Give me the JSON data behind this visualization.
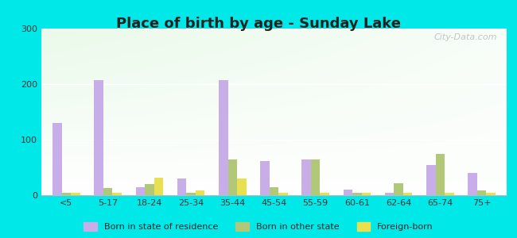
{
  "title": "Place of birth by age - Sunday Lake",
  "categories": [
    "<5",
    "5-17",
    "18-24",
    "25-34",
    "35-44",
    "45-54",
    "55-59",
    "60-61",
    "62-64",
    "65-74",
    "75+"
  ],
  "born_in_state": [
    130,
    207,
    15,
    30,
    207,
    62,
    65,
    10,
    5,
    55,
    40
  ],
  "born_other_state": [
    5,
    13,
    20,
    5,
    65,
    15,
    65,
    5,
    22,
    75,
    8
  ],
  "foreign_born": [
    5,
    5,
    32,
    8,
    30,
    5,
    5,
    5,
    5,
    5,
    5
  ],
  "color_state": "#c8aee8",
  "color_other": "#b0c878",
  "color_foreign": "#e8e050",
  "ylim": [
    0,
    300
  ],
  "yticks": [
    0,
    100,
    200,
    300
  ],
  "outer_bg": "#00e8e8",
  "watermark": "City-Data.com",
  "legend_labels": [
    "Born in state of residence",
    "Born in other state",
    "Foreign-born"
  ]
}
